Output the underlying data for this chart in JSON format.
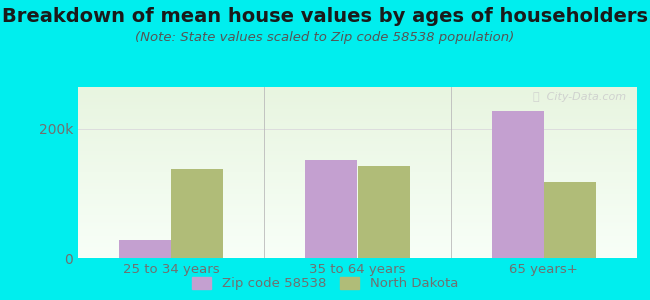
{
  "title": "Breakdown of mean house values by ages of householders",
  "subtitle": "(Note: State values scaled to Zip code 58538 population)",
  "categories": [
    "25 to 34 years",
    "35 to 64 years",
    "65 years+"
  ],
  "zip_values": [
    28000,
    152000,
    228000
  ],
  "state_values": [
    138000,
    142000,
    118000
  ],
  "zip_color": "#c4a0d0",
  "state_color": "#b0bc78",
  "background_color": "#00eeee",
  "plot_bg_color_top": "#e8f5e0",
  "plot_bg_color_bottom": "#f8fff8",
  "yticks": [
    0,
    200000
  ],
  "ytick_labels": [
    "0",
    "200k"
  ],
  "ylim": [
    0,
    265000
  ],
  "bar_width": 0.28,
  "title_fontsize": 14,
  "subtitle_fontsize": 9.5,
  "legend_zip_label": "Zip code 58538",
  "legend_state_label": "North Dakota",
  "watermark_text": "ⓘ  City-Data.com",
  "tick_label_color": "#707070"
}
